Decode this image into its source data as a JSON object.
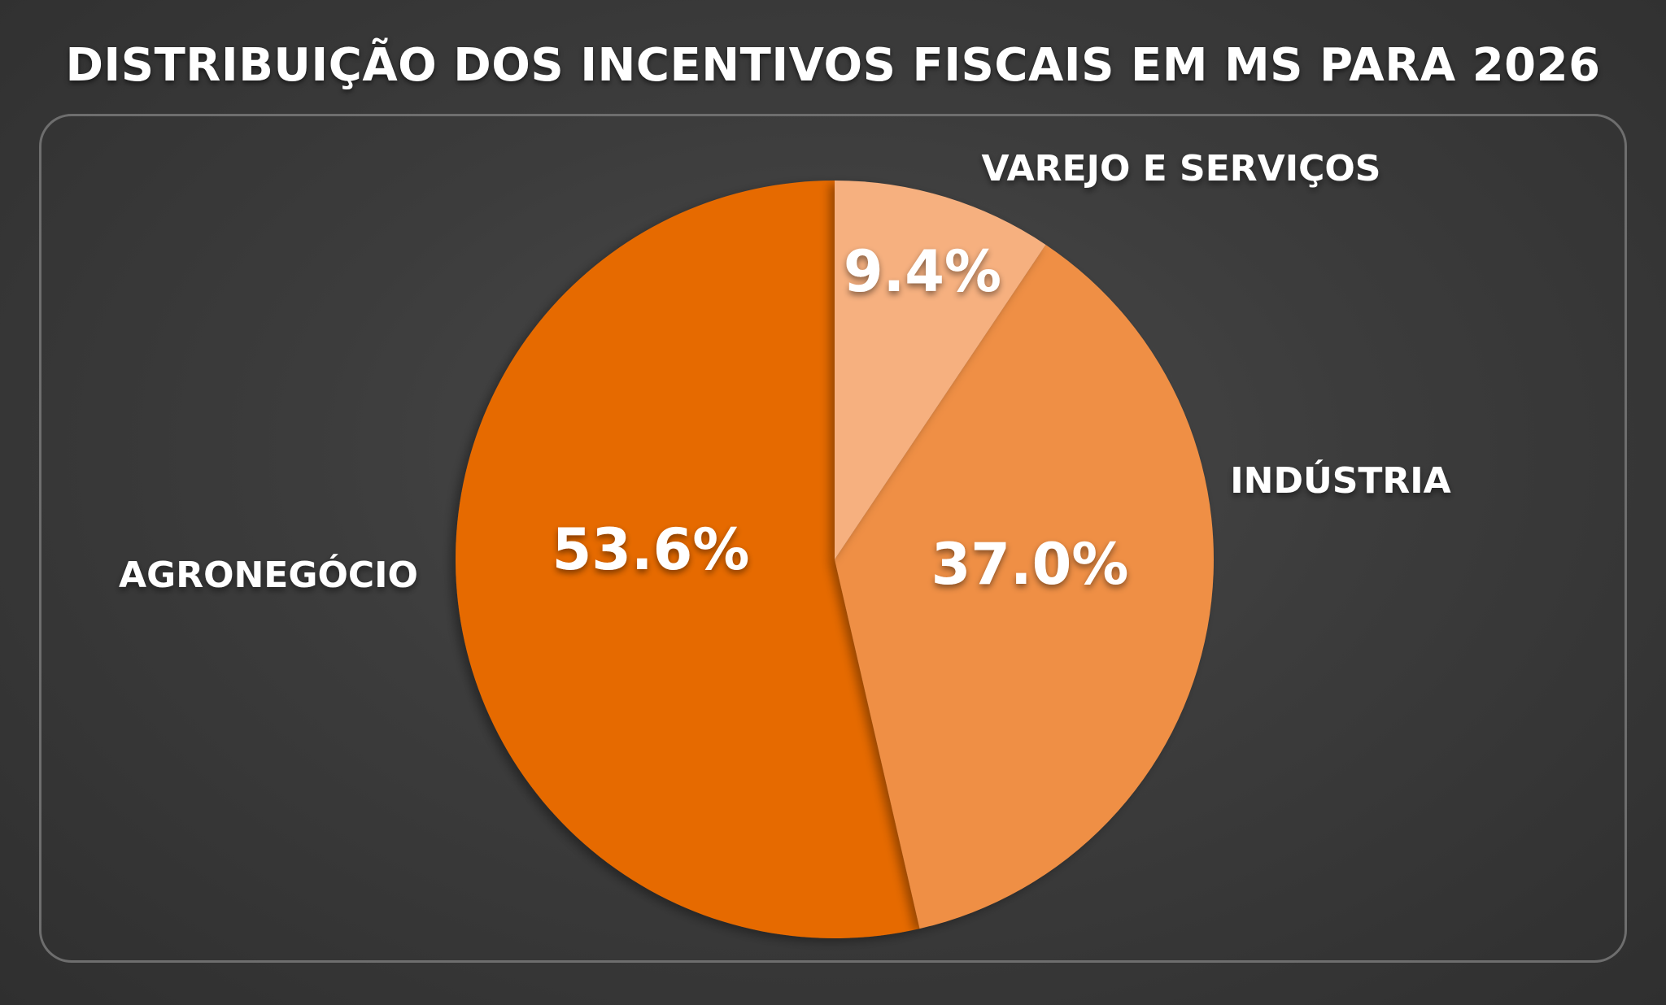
{
  "chart_data": {
    "type": "pie",
    "title": "DISTRIBUIÇÃO DOS INCENTIVOS FISCAIS EM MS PARA 2026",
    "slices": [
      {
        "label": "VAREJO E SERVIÇOS",
        "value": 9.4,
        "value_label": "9.4%",
        "color": "#f6b07f"
      },
      {
        "label": "INDÚSTRIA",
        "value": 37.0,
        "value_label": "37.0%",
        "color": "#ef8f45"
      },
      {
        "label": "AGRONEGÓCIO",
        "value": 53.6,
        "value_label": "53.6%",
        "color": "#e66b00"
      }
    ],
    "start_angle": "12 o'clock",
    "direction": "clockwise",
    "label_placement": "outside",
    "value_label_color": "#ffffff",
    "category_label_color": "#ffffff",
    "background_color": "#3d3d3d",
    "frame_color": "#6e6e6e"
  }
}
